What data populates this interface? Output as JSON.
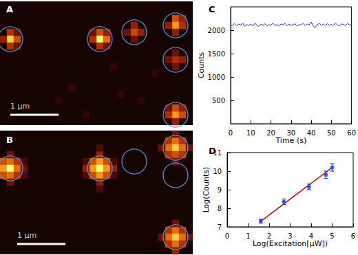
{
  "chart_data": [
    {
      "type": "heatmap",
      "title": "A",
      "grid_size": [
        28,
        18
      ],
      "color_range": [
        0,
        10
      ],
      "tick_labels": false,
      "cells": [
        [
          1,
          4,
          5
        ],
        [
          1,
          5,
          9
        ],
        [
          2,
          5,
          6
        ],
        [
          1,
          6,
          5
        ],
        [
          0,
          5,
          4
        ],
        [
          2,
          4,
          3
        ],
        [
          2,
          6,
          3
        ],
        [
          14,
          4,
          6
        ],
        [
          14,
          5,
          10
        ],
        [
          15,
          5,
          7
        ],
        [
          13,
          5,
          5
        ],
        [
          14,
          6,
          5
        ],
        [
          15,
          4,
          4
        ],
        [
          13,
          4,
          3
        ],
        [
          15,
          6,
          3
        ],
        [
          19,
          3,
          4
        ],
        [
          19,
          4,
          6
        ],
        [
          20,
          4,
          4
        ],
        [
          18,
          4,
          3
        ],
        [
          19,
          5,
          3
        ],
        [
          25,
          2,
          6
        ],
        [
          25,
          3,
          8
        ],
        [
          26,
          3,
          5
        ],
        [
          24,
          3,
          4
        ],
        [
          25,
          4,
          4
        ],
        [
          26,
          2,
          4
        ],
        [
          25,
          8,
          5
        ],
        [
          26,
          8,
          4
        ],
        [
          25,
          9,
          3
        ],
        [
          24,
          8,
          3
        ],
        [
          25,
          7,
          3
        ],
        [
          25,
          16,
          8
        ],
        [
          26,
          16,
          6
        ],
        [
          25,
          15,
          6
        ],
        [
          24,
          16,
          5
        ],
        [
          25,
          17,
          4
        ],
        [
          26,
          15,
          4
        ],
        [
          24,
          15,
          3
        ],
        [
          10,
          12,
          1
        ],
        [
          17,
          13,
          1
        ],
        [
          20,
          14,
          1
        ],
        [
          22,
          10,
          1
        ],
        [
          8,
          14,
          1
        ],
        [
          12,
          16,
          1
        ],
        [
          16,
          9,
          1
        ]
      ],
      "circles": [
        [
          1,
          5
        ],
        [
          14,
          5
        ],
        [
          19,
          4
        ],
        [
          25,
          3
        ],
        [
          25,
          8
        ],
        [
          25,
          16
        ]
      ],
      "scale_bar": {
        "label": "1 μm",
        "x": [
          1,
          8
        ],
        "y": 16
      }
    },
    {
      "type": "heatmap",
      "title": "B",
      "grid_size": [
        28,
        18
      ],
      "color_range": [
        0,
        10
      ],
      "tick_labels": false,
      "cells": [
        [
          0,
          4,
          6
        ],
        [
          1,
          4,
          7
        ],
        [
          2,
          4,
          5
        ],
        [
          0,
          5,
          8
        ],
        [
          1,
          5,
          10
        ],
        [
          2,
          5,
          7
        ],
        [
          0,
          6,
          6
        ],
        [
          1,
          6,
          7
        ],
        [
          2,
          6,
          5
        ],
        [
          3,
          5,
          3
        ],
        [
          1,
          3,
          3
        ],
        [
          1,
          7,
          3
        ],
        [
          3,
          4,
          2
        ],
        [
          3,
          6,
          2
        ],
        [
          13,
          4,
          6
        ],
        [
          14,
          4,
          8
        ],
        [
          15,
          4,
          6
        ],
        [
          13,
          5,
          8
        ],
        [
          14,
          5,
          10
        ],
        [
          15,
          5,
          8
        ],
        [
          13,
          6,
          6
        ],
        [
          14,
          6,
          8
        ],
        [
          15,
          6,
          6
        ],
        [
          12,
          5,
          4
        ],
        [
          16,
          5,
          4
        ],
        [
          14,
          3,
          4
        ],
        [
          14,
          7,
          4
        ],
        [
          12,
          4,
          2
        ],
        [
          16,
          4,
          2
        ],
        [
          12,
          6,
          2
        ],
        [
          16,
          6,
          2
        ],
        [
          14,
          8,
          2
        ],
        [
          14,
          2,
          2
        ],
        [
          24,
          1,
          5
        ],
        [
          25,
          1,
          7
        ],
        [
          26,
          1,
          5
        ],
        [
          24,
          2,
          7
        ],
        [
          25,
          2,
          9
        ],
        [
          26,
          2,
          7
        ],
        [
          24,
          3,
          5
        ],
        [
          25,
          3,
          6
        ],
        [
          26,
          3,
          5
        ],
        [
          27,
          2,
          3
        ],
        [
          23,
          2,
          3
        ],
        [
          25,
          0,
          3
        ],
        [
          25,
          4,
          3
        ],
        [
          24,
          14,
          5
        ],
        [
          25,
          14,
          7
        ],
        [
          26,
          14,
          5
        ],
        [
          24,
          15,
          7
        ],
        [
          25,
          15,
          9
        ],
        [
          26,
          15,
          7
        ],
        [
          24,
          16,
          5
        ],
        [
          25,
          16,
          7
        ],
        [
          26,
          16,
          5
        ],
        [
          23,
          15,
          3
        ],
        [
          27,
          15,
          3
        ],
        [
          25,
          13,
          3
        ],
        [
          25,
          17,
          4
        ]
      ],
      "circles": [
        [
          1,
          5
        ],
        [
          14,
          5
        ],
        [
          19,
          4
        ],
        [
          25,
          2
        ],
        [
          25,
          6
        ],
        [
          25,
          15
        ]
      ],
      "scale_bar": {
        "label": "1 μm",
        "x": [
          2,
          9
        ],
        "y": 16
      }
    },
    {
      "type": "line",
      "title": "C",
      "xlabel": "Time (s)",
      "ylabel": "Counts",
      "x": [
        0,
        1,
        2,
        3,
        4,
        5,
        6,
        7,
        8,
        9,
        10,
        11,
        12,
        13,
        14,
        15,
        16,
        17,
        18,
        19,
        20,
        21,
        22,
        23,
        24,
        25,
        26,
        27,
        28,
        29,
        30,
        31,
        32,
        33,
        34,
        35,
        36,
        37,
        38,
        39,
        40,
        41,
        42,
        43,
        44,
        45,
        46,
        47,
        48,
        49,
        50,
        51,
        52,
        53,
        54,
        55,
        56,
        57,
        58,
        59,
        60
      ],
      "values": [
        2120,
        2105,
        2140,
        2095,
        2130,
        2110,
        2150,
        2085,
        2125,
        2100,
        2135,
        2090,
        2145,
        2115,
        2080,
        2130,
        2105,
        2140,
        2095,
        2120,
        2110,
        2150,
        2100,
        2125,
        2090,
        2135,
        2115,
        2145,
        2095,
        2130,
        2105,
        2120,
        2140,
        2085,
        2125,
        2110,
        2150,
        2100,
        2135,
        2115,
        2175,
        2090,
        2060,
        2120,
        2145,
        2105,
        2130,
        2095,
        2140,
        2110,
        2125,
        2100,
        2150,
        2115,
        2090,
        2135,
        2120,
        2105,
        2145,
        2110,
        2130
      ],
      "xlim": [
        0,
        60
      ],
      "ylim": [
        0,
        2500
      ],
      "xticks": [
        0,
        10,
        20,
        30,
        40,
        50,
        60
      ],
      "yticks": [
        500,
        1000,
        1500,
        2000
      ],
      "color": "#1f3fd8",
      "grid": false
    },
    {
      "type": "scatter",
      "title": "D",
      "xlabel": "Log(Excitation[μW])",
      "ylabel": "Log(Counts)",
      "x": [
        1.6,
        2.7,
        3.9,
        4.7,
        5.0
      ],
      "values": [
        7.3,
        8.35,
        9.15,
        9.8,
        10.2
      ],
      "errors": [
        0.1,
        0.15,
        0.15,
        0.2,
        0.2
      ],
      "color": "#1f3fd8",
      "marker": "circle",
      "fit": {
        "x": [
          1.6,
          5.0
        ],
        "values": [
          7.3,
          10.2
        ],
        "color": "#cc0000"
      },
      "xlim": [
        0,
        6
      ],
      "ylim": [
        7,
        11
      ],
      "xticks": [
        0,
        1,
        2,
        3,
        4,
        5,
        6
      ],
      "yticks": [
        7,
        8,
        9,
        10,
        11
      ],
      "grid": false
    }
  ]
}
